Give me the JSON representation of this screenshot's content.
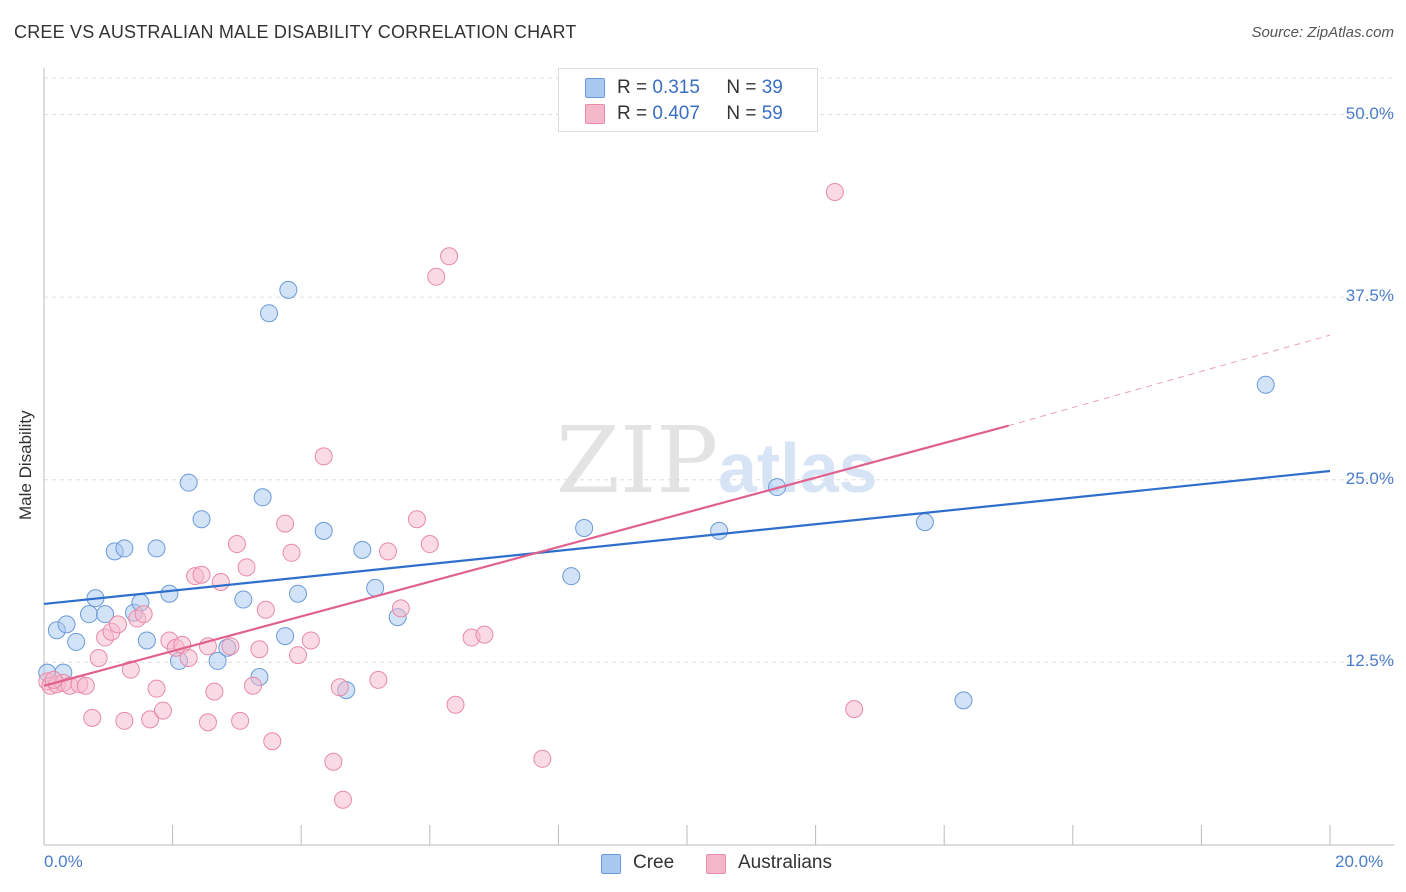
{
  "header": {
    "title": "CREE VS AUSTRALIAN MALE DISABILITY CORRELATION CHART",
    "source": "Source: ZipAtlas.com"
  },
  "legend": {
    "rows": [
      {
        "r_label": "R =",
        "r_value": "0.315",
        "n_label": "N =",
        "n_value": "39",
        "color": "#a8c8f0"
      },
      {
        "r_label": "R =",
        "r_value": "0.407",
        "n_label": "N =",
        "n_value": "59",
        "color": "#f5b8cb"
      }
    ],
    "bottom": [
      {
        "label": "Cree",
        "color": "#a8c8f0"
      },
      {
        "label": "Australians",
        "color": "#f5b8cb"
      }
    ]
  },
  "watermark": {
    "zip": "ZIP",
    "atlas": "atlas"
  },
  "colors": {
    "cree_line": "#2f6fcc",
    "aus_line": "#e0608e",
    "cree_fill": "#a8c8f0",
    "aus_fill": "#f5b8cb",
    "grid": "#dddddd"
  },
  "chart_data": {
    "type": "scatter",
    "xlabel": "",
    "ylabel": "Male Disability",
    "xlim": [
      0,
      20
    ],
    "ylim": [
      0,
      52.5
    ],
    "x_ticks": [
      "0.0%",
      "20.0%"
    ],
    "y_ticks": [
      {
        "value": 12.5,
        "label": "12.5%"
      },
      {
        "value": 25.0,
        "label": "25.0%"
      },
      {
        "value": 37.5,
        "label": "37.5%"
      },
      {
        "value": 50.0,
        "label": "50.0%"
      }
    ],
    "grid": true,
    "legend_position": "top-center",
    "series": [
      {
        "name": "Cree",
        "color": "#a8c8f0",
        "r": 0.315,
        "n": 39,
        "trend": {
          "x": [
            0,
            20
          ],
          "y": [
            16.5,
            25.6
          ]
        },
        "points": [
          [
            0.05,
            11.8
          ],
          [
            0.2,
            14.7
          ],
          [
            0.35,
            15.1
          ],
          [
            0.5,
            13.9
          ],
          [
            0.7,
            15.8
          ],
          [
            0.8,
            16.9
          ],
          [
            0.95,
            15.8
          ],
          [
            1.1,
            20.1
          ],
          [
            1.25,
            20.3
          ],
          [
            1.4,
            15.9
          ],
          [
            1.5,
            16.6
          ],
          [
            1.6,
            14.0
          ],
          [
            1.75,
            20.3
          ],
          [
            1.95,
            17.2
          ],
          [
            2.1,
            12.6
          ],
          [
            2.25,
            24.8
          ],
          [
            2.45,
            22.3
          ],
          [
            2.7,
            12.6
          ],
          [
            2.85,
            13.5
          ],
          [
            3.1,
            16.8
          ],
          [
            3.35,
            11.5
          ],
          [
            3.4,
            23.8
          ],
          [
            3.5,
            36.4
          ],
          [
            3.75,
            14.3
          ],
          [
            3.8,
            38.0
          ],
          [
            3.95,
            17.2
          ],
          [
            4.35,
            21.5
          ],
          [
            4.7,
            10.6
          ],
          [
            4.95,
            20.2
          ],
          [
            5.15,
            17.6
          ],
          [
            5.5,
            15.6
          ],
          [
            8.2,
            18.4
          ],
          [
            8.4,
            21.7
          ],
          [
            10.5,
            21.5
          ],
          [
            11.4,
            24.5
          ],
          [
            13.7,
            22.1
          ],
          [
            14.3,
            9.9
          ],
          [
            19.0,
            31.5
          ],
          [
            0.3,
            11.8
          ]
        ]
      },
      {
        "name": "Australians",
        "color": "#f5b8cb",
        "r": 0.407,
        "n": 59,
        "trend": {
          "x": [
            0,
            15
          ],
          "y": [
            10.9,
            28.7
          ]
        },
        "trend_dashed": {
          "x": [
            15,
            20
          ],
          "y": [
            28.7,
            34.9
          ]
        },
        "points": [
          [
            0.05,
            11.2
          ],
          [
            0.1,
            10.9
          ],
          [
            0.2,
            11.0
          ],
          [
            0.3,
            11.1
          ],
          [
            0.4,
            10.9
          ],
          [
            0.55,
            11.0
          ],
          [
            0.65,
            10.9
          ],
          [
            0.75,
            8.7
          ],
          [
            0.85,
            12.8
          ],
          [
            0.95,
            14.2
          ],
          [
            1.05,
            14.6
          ],
          [
            1.15,
            15.1
          ],
          [
            1.25,
            8.5
          ],
          [
            1.35,
            12.0
          ],
          [
            1.45,
            15.5
          ],
          [
            1.55,
            15.8
          ],
          [
            1.65,
            8.6
          ],
          [
            1.75,
            10.7
          ],
          [
            1.85,
            9.2
          ],
          [
            1.95,
            14.0
          ],
          [
            2.05,
            13.5
          ],
          [
            2.15,
            13.7
          ],
          [
            2.25,
            12.8
          ],
          [
            2.35,
            18.4
          ],
          [
            2.45,
            18.5
          ],
          [
            2.55,
            8.4
          ],
          [
            2.65,
            10.5
          ],
          [
            2.75,
            18.0
          ],
          [
            2.9,
            13.6
          ],
          [
            3.0,
            20.6
          ],
          [
            3.05,
            8.5
          ],
          [
            3.15,
            19.0
          ],
          [
            3.25,
            10.9
          ],
          [
            3.35,
            13.4
          ],
          [
            3.45,
            16.1
          ],
          [
            3.55,
            7.1
          ],
          [
            3.75,
            22.0
          ],
          [
            3.85,
            20.0
          ],
          [
            3.95,
            13.0
          ],
          [
            4.15,
            14.0
          ],
          [
            4.35,
            26.6
          ],
          [
            4.5,
            5.7
          ],
          [
            4.6,
            10.8
          ],
          [
            4.65,
            3.1
          ],
          [
            5.2,
            11.3
          ],
          [
            5.35,
            20.1
          ],
          [
            5.55,
            16.2
          ],
          [
            5.8,
            22.3
          ],
          [
            6.0,
            20.6
          ],
          [
            6.1,
            38.9
          ],
          [
            6.3,
            40.3
          ],
          [
            6.4,
            9.6
          ],
          [
            6.65,
            14.2
          ],
          [
            6.85,
            14.4
          ],
          [
            7.75,
            5.9
          ],
          [
            12.3,
            44.7
          ],
          [
            12.6,
            9.3
          ],
          [
            2.55,
            13.6
          ],
          [
            0.15,
            11.3
          ]
        ]
      }
    ]
  }
}
